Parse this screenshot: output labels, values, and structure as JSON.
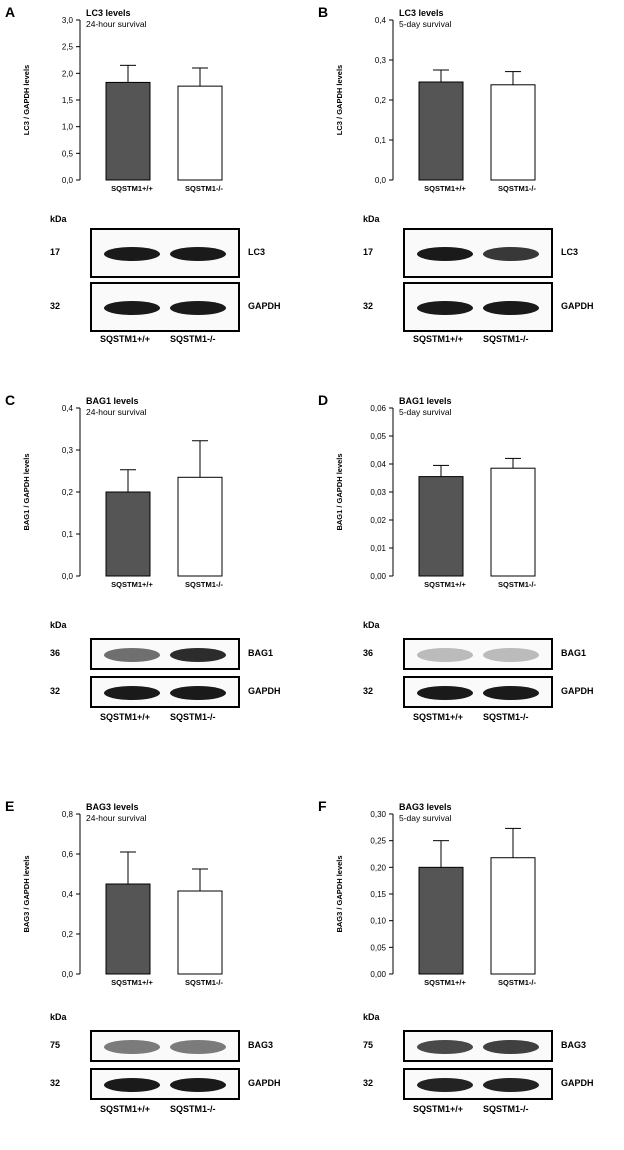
{
  "panels": [
    {
      "letter": "A",
      "chart_data": {
        "type": "bar",
        "title": "LC3 levels",
        "subtitle": "24-hour survival",
        "ylabel": "LC3 / GAPDH levels",
        "categories": [
          "SQSTM1+/+",
          "SQSTM1-/-"
        ],
        "values": [
          1.83,
          1.76
        ],
        "errors": [
          0.32,
          0.34
        ],
        "ylim": [
          0,
          3.0
        ],
        "yticks": [
          "0,0",
          "0,5",
          "1,0",
          "1,5",
          "2,0",
          "2,5",
          "3,0"
        ],
        "bar_colors": [
          "#555555",
          "#ffffff"
        ]
      },
      "blot": {
        "kda": "kDa",
        "rows": [
          {
            "mw": "17",
            "label": "LC3",
            "intensity": [
              1.0,
              1.0
            ]
          },
          {
            "mw": "32",
            "label": "GAPDH",
            "intensity": [
              1.0,
              1.0
            ]
          }
        ],
        "lanes": [
          "SQSTM1+/+",
          "SQSTM1-/-"
        ]
      }
    },
    {
      "letter": "B",
      "chart_data": {
        "type": "bar",
        "title": "LC3 levels",
        "subtitle": "5-day survival",
        "ylabel": "LC3 / GAPDH levels",
        "categories": [
          "SQSTM1+/+",
          "SQSTM1-/-"
        ],
        "values": [
          0.245,
          0.238
        ],
        "errors": [
          0.03,
          0.033
        ],
        "ylim": [
          0,
          0.4
        ],
        "yticks": [
          "0,0",
          "0,1",
          "0,2",
          "0,3",
          "0,4"
        ],
        "bar_colors": [
          "#555555",
          "#ffffff"
        ]
      },
      "blot": {
        "kda": "kDa",
        "rows": [
          {
            "mw": "17",
            "label": "LC3",
            "intensity": [
              1.0,
              0.85
            ]
          },
          {
            "mw": "32",
            "label": "GAPDH",
            "intensity": [
              1.0,
              1.0
            ]
          }
        ],
        "lanes": [
          "SQSTM1+/+",
          "SQSTM1-/-"
        ]
      }
    },
    {
      "letter": "C",
      "chart_data": {
        "type": "bar",
        "title": "BAG1 levels",
        "subtitle": "24-hour survival",
        "ylabel": "BAG1 / GAPDH levels",
        "categories": [
          "SQSTM1+/+",
          "SQSTM1-/-"
        ],
        "values": [
          0.2,
          0.235
        ],
        "errors": [
          0.053,
          0.087
        ],
        "ylim": [
          0,
          0.4
        ],
        "yticks": [
          "0,0",
          "0,1",
          "0,2",
          "0,3",
          "0,4"
        ],
        "bar_colors": [
          "#555555",
          "#ffffff"
        ]
      },
      "blot": {
        "kda": "kDa",
        "rows": [
          {
            "mw": "36",
            "label": "BAG1",
            "intensity": [
              0.55,
              0.9
            ]
          },
          {
            "mw": "32",
            "label": "GAPDH",
            "intensity": [
              1.0,
              1.0
            ]
          }
        ],
        "lanes": [
          "SQSTM1+/+",
          "SQSTM1-/-"
        ]
      }
    },
    {
      "letter": "D",
      "chart_data": {
        "type": "bar",
        "title": "BAG1 levels",
        "subtitle": "5-day survival",
        "ylabel": "BAG1 / GAPDH levels",
        "categories": [
          "SQSTM1+/+",
          "SQSTM1-/-"
        ],
        "values": [
          0.0355,
          0.0385
        ],
        "errors": [
          0.004,
          0.0035
        ],
        "ylim": [
          0,
          0.06
        ],
        "yticks": [
          "0,00",
          "0,01",
          "0,02",
          "0,03",
          "0,04",
          "0,05",
          "0,06"
        ],
        "bar_colors": [
          "#555555",
          "#ffffff"
        ]
      },
      "blot": {
        "kda": "kDa",
        "rows": [
          {
            "mw": "36",
            "label": "BAG1",
            "intensity": [
              0.15,
              0.15
            ]
          },
          {
            "mw": "32",
            "label": "GAPDH",
            "intensity": [
              1.0,
              1.0
            ]
          }
        ],
        "lanes": [
          "SQSTM1+/+",
          "SQSTM1-/-"
        ]
      }
    },
    {
      "letter": "E",
      "chart_data": {
        "type": "bar",
        "title": "BAG3 levels",
        "subtitle": "24-hour survival",
        "ylabel": "BAG3 / GAPDH levels",
        "categories": [
          "SQSTM1+/+",
          "SQSTM1-/-"
        ],
        "values": [
          0.45,
          0.415
        ],
        "errors": [
          0.16,
          0.11
        ],
        "ylim": [
          0,
          0.8
        ],
        "yticks": [
          "0,0",
          "0,2",
          "0,4",
          "0,6",
          "0,8"
        ],
        "bar_colors": [
          "#555555",
          "#ffffff"
        ]
      },
      "blot": {
        "kda": "kDa",
        "rows": [
          {
            "mw": "75",
            "label": "BAG3",
            "intensity": [
              0.5,
              0.5
            ]
          },
          {
            "mw": "32",
            "label": "GAPDH",
            "intensity": [
              1.0,
              1.0
            ]
          }
        ],
        "lanes": [
          "SQSTM1+/+",
          "SQSTM1-/-"
        ]
      }
    },
    {
      "letter": "F",
      "chart_data": {
        "type": "bar",
        "title": "BAG3 levels",
        "subtitle": "5-day survival",
        "ylabel": "BAG3 / GAPDH levels",
        "categories": [
          "SQSTM1+/+",
          "SQSTM1-/-"
        ],
        "values": [
          0.2,
          0.218
        ],
        "errors": [
          0.05,
          0.055
        ],
        "ylim": [
          0,
          0.3
        ],
        "yticks": [
          "0,00",
          "0,05",
          "0,10",
          "0,15",
          "0,20",
          "0,25",
          "0,30"
        ],
        "bar_colors": [
          "#555555",
          "#ffffff"
        ]
      },
      "blot": {
        "kda": "kDa",
        "rows": [
          {
            "mw": "75",
            "label": "BAG3",
            "intensity": [
              0.75,
              0.8
            ]
          },
          {
            "mw": "32",
            "label": "GAPDH",
            "intensity": [
              0.95,
              0.95
            ]
          }
        ],
        "lanes": [
          "SQSTM1+/+",
          "SQSTM1-/-"
        ]
      }
    }
  ]
}
